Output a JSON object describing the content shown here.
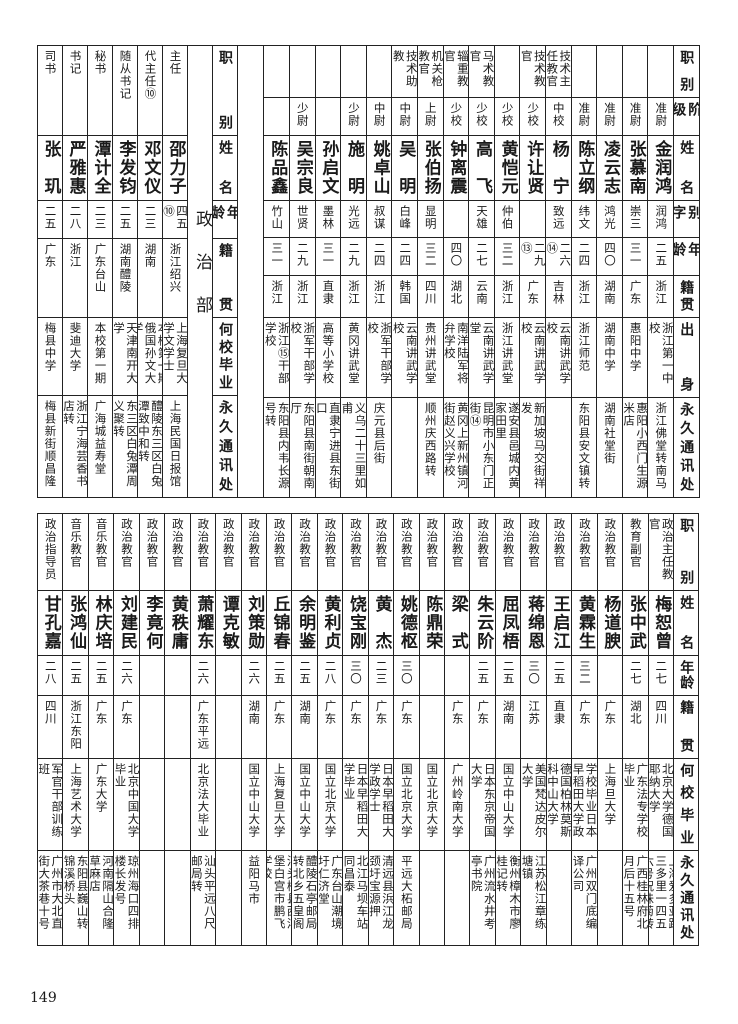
{
  "top_main": {
    "headers": [
      "职别",
      "阶级",
      "姓名",
      "别字",
      "年龄",
      "籍贯",
      "出身",
      "永久通讯处"
    ],
    "rows": [
      {
        "role": "",
        "rank": "准尉",
        "name": "金润鸿",
        "alias": "润鸿",
        "age": "二五",
        "native": "浙江",
        "background": "浙江第一中校",
        "address": "浙江佛堂转南马"
      },
      {
        "role": "",
        "rank": "准尉",
        "name": "张慕南",
        "alias": "崇三",
        "age": "三一",
        "native": "广东",
        "background": "惠阳中学",
        "address": "惠阳小西门生源米店"
      },
      {
        "role": "",
        "rank": "准尉",
        "name": "凌云志",
        "alias": "鸿光",
        "age": "四〇",
        "native": "湖南",
        "background": "湖南中学",
        "address": "湖南社堂街"
      },
      {
        "role": "",
        "rank": "准尉",
        "name": "陈立纲",
        "alias": "纬文",
        "age": "二四",
        "native": "浙江",
        "background": "浙江师范",
        "address": "东阳县安文镇转"
      },
      {
        "role": "技术主任教官",
        "rank": "中校",
        "name": "杨宁",
        "alias": "致远",
        "age": "二六⑭",
        "native": "吉林",
        "background": "云南讲武学校",
        "address": ""
      },
      {
        "role": "技术教官",
        "rank": "少校",
        "name": "许让贤",
        "alias": "",
        "age": "二九⑬",
        "native": "广东",
        "background": "云南讲武学校",
        "address": "新加坡马交街祥发"
      },
      {
        "role": "",
        "rank": "少校",
        "name": "黄恺元",
        "alias": "仲伯",
        "age": "三二",
        "native": "浙江",
        "background": "浙江讲武堂",
        "address": "遂安县邑城内黄家田里"
      },
      {
        "role": "马术教官",
        "rank": "少校",
        "name": "高飞",
        "alias": "天雄",
        "age": "二七",
        "native": "云南",
        "background": "云南讲武学堂",
        "address": "昆明市小东门正街⑭"
      },
      {
        "role": "辎重教官",
        "rank": "少校",
        "name": "钟离震",
        "alias": "",
        "age": "四〇",
        "native": "湖北",
        "background": "南洋陆军将弁学校",
        "address": "黄冈上新州镇河街赵义兴学校"
      },
      {
        "role": "机关枪教官",
        "rank": "上尉",
        "name": "张伯扬",
        "alias": "显明",
        "age": "三二",
        "native": "四川",
        "background": "贵州讲武堂",
        "address": "顺州庆西路转"
      },
      {
        "role": "技术助教",
        "rank": "中尉",
        "name": "吴明",
        "alias": "白峰",
        "age": "二四",
        "native": "韩国",
        "background": "云南讲武学校",
        "address": ""
      },
      {
        "role": "",
        "rank": "中尉",
        "name": "姚卓山",
        "alias": "叔谋",
        "age": "二四",
        "native": "浙江",
        "background": "浙军干部学校",
        "address": "庆元县后街"
      },
      {
        "role": "",
        "rank": "少尉",
        "name": "施明",
        "alias": "光远",
        "age": "二九",
        "native": "浙江",
        "background": "黄冈讲武堂",
        "address": "义乌二十三里如甫"
      },
      {
        "role": "",
        "rank": "",
        "name": "孙启文",
        "alias": "墨林",
        "age": "三一",
        "native": "直隶",
        "background": "高等小学校",
        "address": "直隶宁进县东街口"
      },
      {
        "role": "",
        "rank": "少尉",
        "name": "吴宗良",
        "alias": "世贤",
        "age": "二九",
        "native": "浙江",
        "background": "浙军干部学校",
        "address": "东阳县南街朝南厅"
      },
      {
        "role": "",
        "rank": "",
        "name": "陈品鑫",
        "alias": "竹山",
        "age": "三一",
        "native": "浙江",
        "background": "浙江⑮干部学校",
        "address": "东阳县内韦长源号转"
      }
    ]
  },
  "department_label": "政治部",
  "politics_headers": [
    "职别",
    "姓名",
    "年龄",
    "籍贯",
    "何校毕业",
    "永久通讯处"
  ],
  "politics_top": [
    {
      "role": "主任",
      "name": "邵力子",
      "age": "四五⑩",
      "native": "浙江绍兴",
      "school": "上海复旦大学文学士",
      "address": "上海民国日报馆"
    },
    {
      "role": "代主任⑩",
      "name": "邓文仪",
      "age": "二三",
      "native": "湖南",
      "school": "本校第一期俄国孙文大学",
      "address": "醴陵东三区白兔潭致中和转"
    },
    {
      "role": "随从书记",
      "name": "李发钧",
      "age": "二五",
      "native": "湖南醴陵",
      "school": "天津南开大学",
      "address": "东三区白兔潭周义聚转"
    },
    {
      "role": "秘书",
      "name": "潭计全",
      "age": "二三",
      "native": "广东台山",
      "school": "本校第一期",
      "address": "广海城益寿堂"
    },
    {
      "role": "书记",
      "name": "严雅惠",
      "age": "二八",
      "native": "浙江",
      "school": "斐迪大学",
      "address": "浙江宁海芸香书店转"
    },
    {
      "role": "司书",
      "name": "张玑",
      "age": "二五",
      "native": "广东",
      "school": "梅县中学",
      "address": "梅县新街顺昌隆"
    }
  ],
  "politics_bottom": [
    {
      "role": "政治主任教官",
      "name": "梅恕曾",
      "age": "二七",
      "native": "四川",
      "school": "北京大学德国耶纳大学",
      "address": "上海爱多亚路三多里一四五六号祝味菊转"
    },
    {
      "role": "教育副官",
      "name": "张中武",
      "age": "二七",
      "native": "湖北",
      "school": "广东法专学校毕业",
      "address": "广西桂林府北月后十五号"
    },
    {
      "role": "政治教官",
      "name": "杨道腴",
      "age": "",
      "native": "广东",
      "school": "上海旦大学",
      "address": ""
    },
    {
      "role": "政治教官",
      "name": "黄霖生",
      "age": "三二",
      "native": "广东",
      "school": "日本振武陆军学校毕业日本早稻田大学政治学士",
      "address": "广州双门底编译公司"
    },
    {
      "role": "政治教官",
      "name": "王启江",
      "age": "二五",
      "native": "直隶",
      "school": "德国柏林莫斯科中山大学",
      "address": ""
    },
    {
      "role": "政治教官",
      "name": "蒋绵恩",
      "age": "三〇",
      "native": "江苏",
      "school": "美国梵达皮尔大学",
      "address": "江苏松江章练塘镇"
    },
    {
      "role": "政治教官",
      "name": "屈凤梧",
      "age": "二五",
      "native": "湖南",
      "school": "国立中山大学",
      "address": "衡州樟木市廖桂记转"
    },
    {
      "role": "政治教官",
      "name": "朱云阶",
      "age": "二五",
      "native": "广东",
      "school": "日本东京帝国大学",
      "address": "广州流水井考亭书院"
    },
    {
      "role": "政治教官",
      "name": "梁式",
      "age": "",
      "native": "广东",
      "school": "广州岭南大学",
      "address": ""
    },
    {
      "role": "政治教官",
      "name": "陈鼎荣",
      "age": "",
      "native": "",
      "school": "国立北京大学",
      "address": ""
    },
    {
      "role": "政治教官",
      "name": "姚德枢",
      "age": "三〇",
      "native": "广东",
      "school": "国立北京大学",
      "address": "平远大柘邮局"
    },
    {
      "role": "政治教官",
      "name": "黄杰",
      "age": "二三",
      "native": "广东",
      "school": "日本早稻田大学政学士",
      "address": "清远县浜江龙颈圩宝源押"
    },
    {
      "role": "政治教官",
      "name": "饶宝刚",
      "age": "三〇",
      "native": "广东",
      "school": "日本早稻田大学毕业",
      "address": "北江马坝车站同昌泰"
    },
    {
      "role": "政治教官",
      "name": "黄利贞",
      "age": "二八",
      "native": "广东",
      "school": "国立北京大学",
      "address": "广东台山潮境圩仁济堂"
    },
    {
      "role": "政治教官",
      "name": "余明鉴",
      "age": "二五",
      "native": "湖南",
      "school": "国立中山大学",
      "address": "醴陵石亭邮局转北乡五皇阁"
    },
    {
      "role": "政治教官",
      "name": "丘锦春",
      "age": "二五",
      "native": "广东",
      "school": "上海复旦大学",
      "address": "汕头梅县西洋堡白宫市鹏飞学校"
    },
    {
      "role": "政治教官",
      "name": "刘策勋",
      "age": "二六",
      "native": "湖南",
      "school": "国立中山大学",
      "address": "益阳马市"
    },
    {
      "role": "政治教官",
      "name": "谭克敏",
      "age": "",
      "native": "",
      "school": "",
      "address": ""
    },
    {
      "role": "政治教官",
      "name": "萧耀东",
      "age": "二六",
      "native": "广东平远",
      "school": "北京法大毕业",
      "address": "汕头平远八尺邮局转"
    },
    {
      "role": "政治教官",
      "name": "黄秩庸",
      "age": "",
      "native": "",
      "school": "",
      "address": ""
    },
    {
      "role": "政治教官",
      "name": "李竟何",
      "age": "",
      "native": "",
      "school": "",
      "address": ""
    },
    {
      "role": "政治教官",
      "name": "刘建民",
      "age": "二六",
      "native": "广东",
      "school": "北京中国大学毕业",
      "address": "琼州海口四排楼长发号"
    },
    {
      "role": "音乐教官",
      "name": "林庆培",
      "age": "二五",
      "native": "广东",
      "school": "广东大学",
      "address": "河南隔山合隆草麻店"
    },
    {
      "role": "音乐教官",
      "name": "张鸿仙",
      "age": "二五",
      "native": "浙江东阳",
      "school": "上海艺术大学",
      "address": "东阳县巍山转锦溪桥头"
    },
    {
      "role": "政治指导员",
      "name": "甘孔嘉",
      "age": "二八",
      "native": "四川",
      "school": "军官干部训练班",
      "address": "广州市大北直街大茶巷十号"
    }
  ],
  "page_number": "149"
}
